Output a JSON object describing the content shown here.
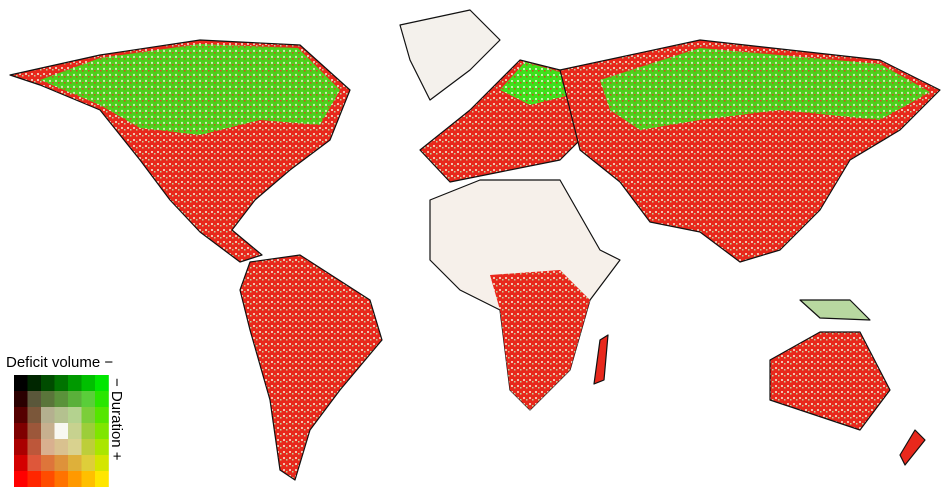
{
  "legend": {
    "x_label": "Deficit volume −",
    "y_label": "− Duration +"
  }
}
